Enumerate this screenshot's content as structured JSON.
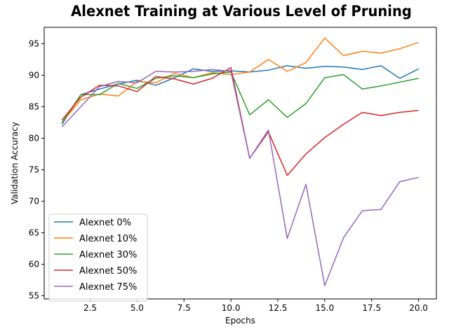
{
  "chart_data": {
    "type": "line",
    "title": "Alexnet Training at Various Level of Pruning",
    "xlabel": "Epochs",
    "ylabel": "Validation Accuracy",
    "xlim": [
      0.05,
      20.95
    ],
    "ylim": [
      54.5,
      97.6
    ],
    "xticks": [
      2.5,
      5.0,
      7.5,
      10.0,
      12.5,
      15.0,
      17.5,
      20.0
    ],
    "xtick_labels": [
      "2.5",
      "5.0",
      "7.5",
      "10.0",
      "12.5",
      "15.0",
      "17.5",
      "20.0"
    ],
    "yticks": [
      55,
      60,
      65,
      70,
      75,
      80,
      85,
      90,
      95
    ],
    "ytick_labels": [
      "55",
      "60",
      "65",
      "70",
      "75",
      "80",
      "85",
      "90",
      "95"
    ],
    "grid": false,
    "legend_position": "lower-left",
    "x": [
      1,
      2,
      3,
      4,
      5,
      6,
      7,
      8,
      9,
      10,
      11,
      12,
      13,
      14,
      15,
      16,
      17,
      18,
      19,
      20
    ],
    "series": [
      {
        "name": "Alexnet 0%",
        "color": "#1f77b4",
        "values": [
          82.2,
          86.9,
          87.8,
          88.6,
          89.2,
          88.4,
          89.6,
          91.0,
          90.6,
          90.7,
          90.5,
          90.8,
          91.5,
          91.1,
          91.4,
          91.3,
          90.9,
          91.5,
          89.5,
          91.0
        ]
      },
      {
        "name": "Alexnet 10%",
        "color": "#ff7f0e",
        "values": [
          82.5,
          86.1,
          87.0,
          86.7,
          89.0,
          88.8,
          90.3,
          89.6,
          90.4,
          90.1,
          90.5,
          92.5,
          90.6,
          92.0,
          95.9,
          93.1,
          93.8,
          93.5,
          94.2,
          95.2
        ]
      },
      {
        "name": "Alexnet 30%",
        "color": "#2ca02c",
        "values": [
          82.5,
          86.9,
          86.9,
          88.7,
          87.9,
          89.5,
          89.9,
          89.6,
          90.2,
          90.5,
          83.7,
          86.1,
          83.3,
          85.5,
          89.6,
          90.1,
          87.8,
          88.3,
          88.9,
          89.5
        ]
      },
      {
        "name": "Alexnet 50%",
        "color": "#d62728",
        "values": [
          82.9,
          86.5,
          88.4,
          88.3,
          87.4,
          89.8,
          89.4,
          88.6,
          89.5,
          91.2,
          76.8,
          81.0,
          74.1,
          77.5,
          80.1,
          82.2,
          84.1,
          83.6,
          84.1,
          84.4
        ]
      },
      {
        "name": "Alexnet 75%",
        "color": "#9467bd",
        "values": [
          81.8,
          85.0,
          88.2,
          89.0,
          88.8,
          90.6,
          90.5,
          90.6,
          90.9,
          90.6,
          76.8,
          81.3,
          64.1,
          72.7,
          56.6,
          64.2,
          68.5,
          68.7,
          73.1,
          73.8
        ]
      }
    ]
  }
}
